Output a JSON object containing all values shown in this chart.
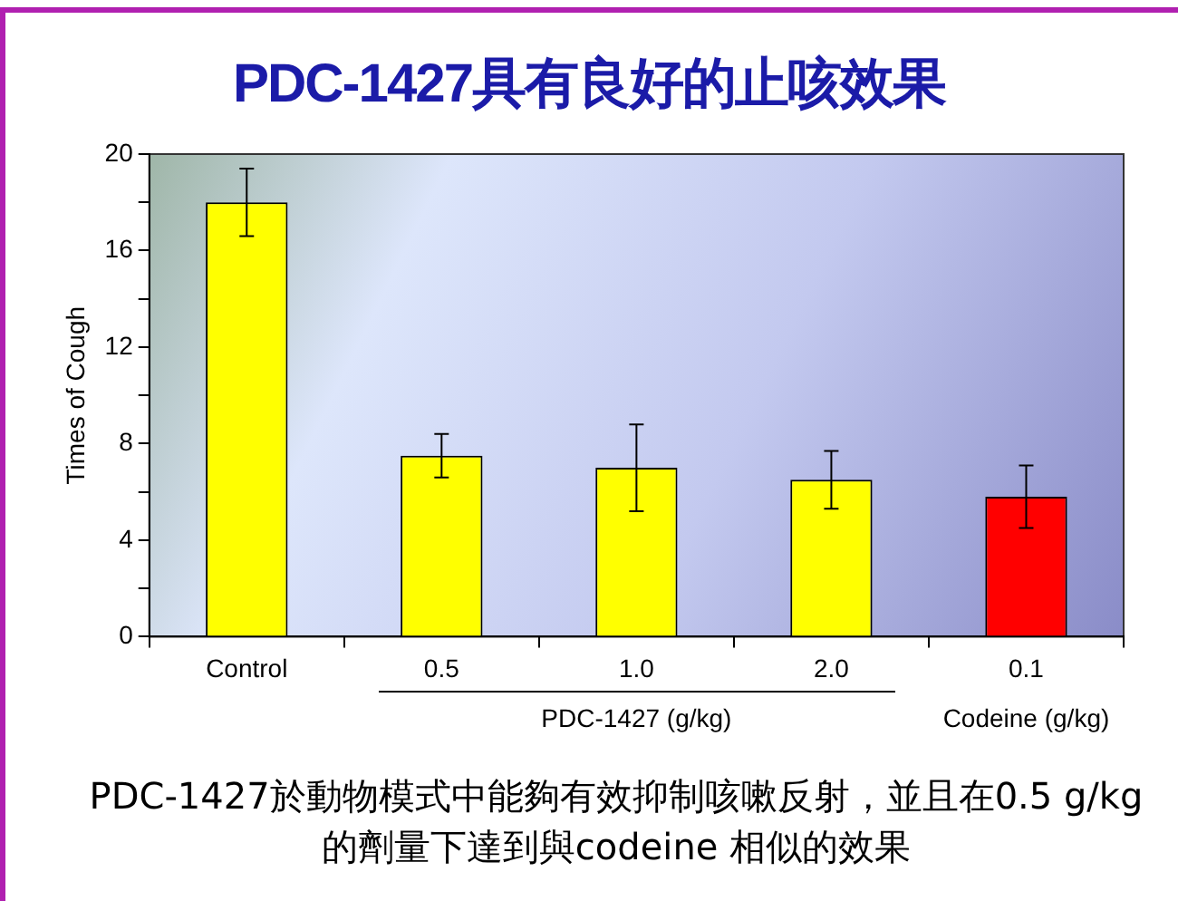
{
  "chart_data": {
    "type": "bar",
    "title": "PDC-1427具有良好的止咳效果",
    "ylabel": "Times of Cough",
    "categories": [
      "Control",
      "0.5",
      "1.0",
      "2.0",
      "0.1"
    ],
    "values": [
      18,
      7.5,
      7,
      6.5,
      5.8
    ],
    "colors": [
      "#ffff00",
      "#ffff00",
      "#ffff00",
      "#ffff00",
      "#ff0000"
    ],
    "errors": [
      1.4,
      0.9,
      1.8,
      1.2,
      1.3
    ],
    "ylim": [
      0,
      20
    ],
    "yticks": [
      0,
      {
        "value": 2,
        "label": null
      },
      4,
      {
        "value": 6,
        "label": null
      },
      8,
      {
        "value": 10,
        "label": null
      },
      12,
      {
        "value": 14,
        "label": null
      },
      16,
      {
        "value": 18,
        "label": null
      },
      20
    ],
    "grid": false,
    "legend": false,
    "annotations": [
      "PDC-1427 (g/kg)",
      "Codeine (g/kg)",
      "PDC-1427於動物模式中能夠有效抑制咳嗽反射，並且在0.5 g/kg的劑量下達到與codeine 相似的效果"
    ]
  }
}
